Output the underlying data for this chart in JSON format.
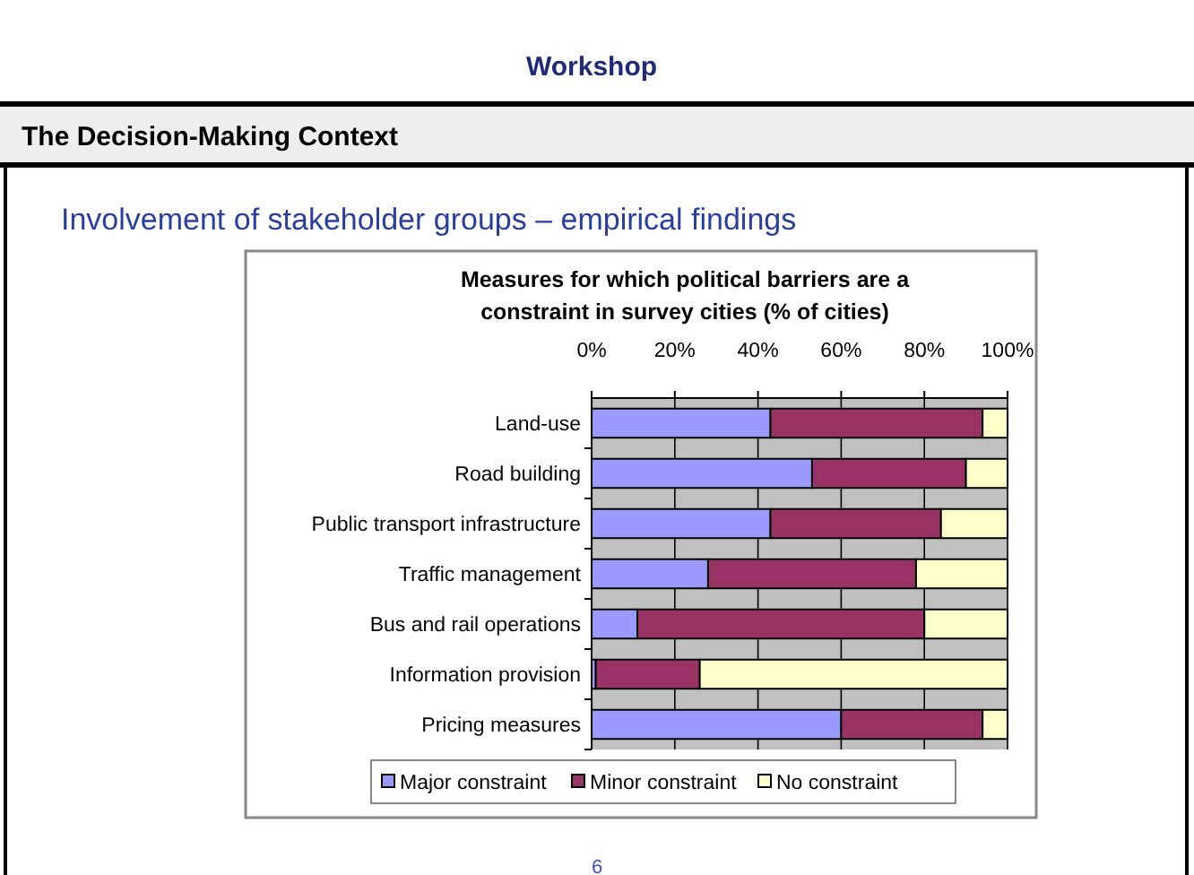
{
  "chart_data": {
    "type": "bar",
    "orientation": "horizontal",
    "stacked": true,
    "title": "Measures for which political barriers are a constraint in survey cities (% of cities)",
    "categories": [
      "Land-use",
      "Road building",
      "Public transport infrastructure",
      "Traffic management",
      "Bus and rail operations",
      "Information provision",
      "Pricing measures"
    ],
    "series": [
      {
        "name": "Major constraint",
        "color": "#9999ff",
        "values": [
          43,
          53,
          43,
          28,
          11,
          1,
          60
        ]
      },
      {
        "name": "Minor constraint",
        "color": "#993366",
        "values": [
          51,
          37,
          41,
          50,
          69,
          25,
          34
        ]
      },
      {
        "name": "No constraint",
        "color": "#ffffcc",
        "values": [
          6,
          10,
          16,
          22,
          20,
          74,
          6
        ]
      }
    ],
    "xlim": [
      0,
      100
    ],
    "xticks": [
      {
        "value": 0,
        "label": "0%"
      },
      {
        "value": 20,
        "label": "20%"
      },
      {
        "value": 40,
        "label": "40%"
      },
      {
        "value": 60,
        "label": "60%"
      },
      {
        "value": 80,
        "label": "80%"
      },
      {
        "value": 100,
        "label": "100%"
      }
    ],
    "grid": "x",
    "legend": "bottom",
    "annotations": [
      "Workshop",
      "The Decision-Making Context",
      "Involvement of stakeholder groups – empirical findings",
      "6"
    ]
  }
}
